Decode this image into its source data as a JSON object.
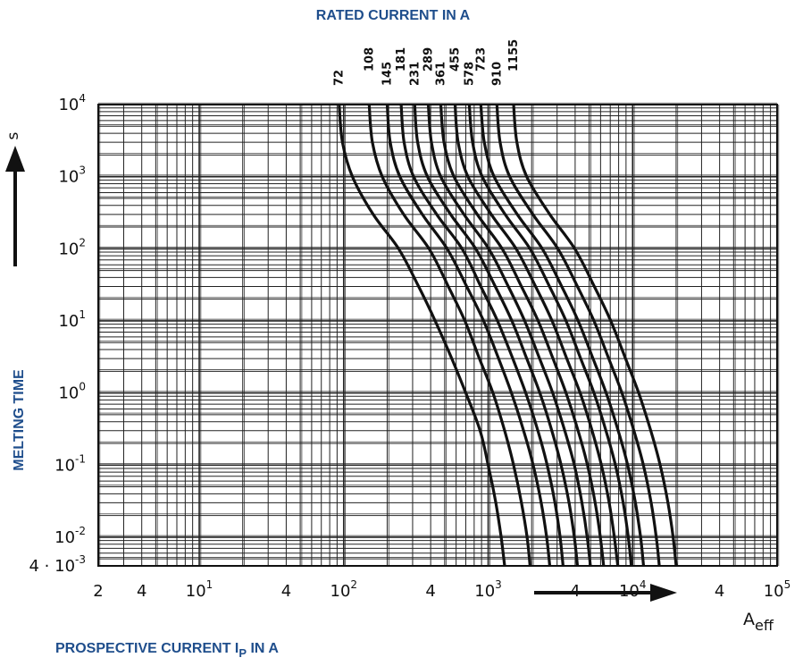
{
  "colors": {
    "label_blue": "#1f4e8c",
    "ink": "#111111",
    "grid": "#222222"
  },
  "chart_data": {
    "type": "line",
    "title": "RATED CURRENT IN A",
    "xlabel": "PROSPECTIVE CURRENT Ip IN A",
    "xlabel_main": "PROSPECTIVE CURRENT I",
    "xlabel_sub": "P",
    "xlabel_tail": " IN A",
    "ylabel": "MELTING TIME",
    "y_unit": "s",
    "x_unit_main": "A",
    "x_unit_sub": "eff",
    "x_scale": "log",
    "y_scale": "log",
    "xlim": [
      2,
      100000
    ],
    "ylim": [
      0.004,
      10000
    ],
    "grid": true,
    "x_ticks": [
      {
        "value": 2,
        "mantissa": "2",
        "exp": ""
      },
      {
        "value": 4,
        "mantissa": "4",
        "exp": ""
      },
      {
        "value": 10,
        "mantissa": "10",
        "exp": "1"
      },
      {
        "value": 40,
        "mantissa": "4",
        "exp": ""
      },
      {
        "value": 100,
        "mantissa": "10",
        "exp": "2"
      },
      {
        "value": 400,
        "mantissa": "4",
        "exp": ""
      },
      {
        "value": 1000,
        "mantissa": "10",
        "exp": "3"
      },
      {
        "value": 4000,
        "mantissa": "4",
        "exp": ""
      },
      {
        "value": 10000,
        "mantissa": "10",
        "exp": "4"
      },
      {
        "value": 40000,
        "mantissa": "4",
        "exp": ""
      },
      {
        "value": 100000,
        "mantissa": "10",
        "exp": "5"
      }
    ],
    "y_ticks": [
      {
        "value": 10000,
        "mantissa": "10",
        "exp": "4"
      },
      {
        "value": 1000,
        "mantissa": "10",
        "exp": "3"
      },
      {
        "value": 100,
        "mantissa": "10",
        "exp": "2"
      },
      {
        "value": 10,
        "mantissa": "10",
        "exp": "1"
      },
      {
        "value": 1,
        "mantissa": "10",
        "exp": "0"
      },
      {
        "value": 0.1,
        "mantissa": "10",
        "exp": "-1"
      },
      {
        "value": 0.01,
        "mantissa": "10",
        "exp": "-2"
      },
      {
        "value": 0.004,
        "mantissa": "4 · 10",
        "exp": "-3"
      }
    ],
    "series": [
      {
        "name": "72",
        "points": [
          [
            93,
            10000
          ],
          [
            98,
            3000
          ],
          [
            115,
            1000
          ],
          [
            160,
            300
          ],
          [
            240,
            100
          ],
          [
            330,
            30
          ],
          [
            430,
            10
          ],
          [
            560,
            3
          ],
          [
            700,
            1
          ],
          [
            880,
            0.3
          ],
          [
            1000,
            0.1
          ],
          [
            1130,
            0.03
          ],
          [
            1230,
            0.01
          ],
          [
            1300,
            0.004
          ]
        ]
      },
      {
        "name": "108",
        "points": [
          [
            150,
            10000
          ],
          [
            158,
            3000
          ],
          [
            185,
            1000
          ],
          [
            260,
            300
          ],
          [
            390,
            100
          ],
          [
            530,
            30
          ],
          [
            690,
            10
          ],
          [
            870,
            3
          ],
          [
            1080,
            1
          ],
          [
            1300,
            0.3
          ],
          [
            1500,
            0.1
          ],
          [
            1700,
            0.03
          ],
          [
            1860,
            0.01
          ],
          [
            1950,
            0.004
          ]
        ]
      },
      {
        "name": "145",
        "points": [
          [
            200,
            10000
          ],
          [
            210,
            3000
          ],
          [
            245,
            1000
          ],
          [
            350,
            300
          ],
          [
            520,
            100
          ],
          [
            710,
            30
          ],
          [
            930,
            10
          ],
          [
            1180,
            3
          ],
          [
            1450,
            1
          ],
          [
            1760,
            0.3
          ],
          [
            2050,
            0.1
          ],
          [
            2330,
            0.03
          ],
          [
            2540,
            0.01
          ],
          [
            2670,
            0.004
          ]
        ]
      },
      {
        "name": "181",
        "points": [
          [
            250,
            10000
          ],
          [
            262,
            3000
          ],
          [
            305,
            1000
          ],
          [
            440,
            300
          ],
          [
            660,
            100
          ],
          [
            890,
            30
          ],
          [
            1160,
            10
          ],
          [
            1480,
            3
          ],
          [
            1820,
            1
          ],
          [
            2210,
            0.3
          ],
          [
            2560,
            0.1
          ],
          [
            2900,
            0.03
          ],
          [
            3150,
            0.01
          ],
          [
            3300,
            0.004
          ]
        ]
      },
      {
        "name": "231",
        "points": [
          [
            310,
            10000
          ],
          [
            325,
            3000
          ],
          [
            380,
            1000
          ],
          [
            550,
            300
          ],
          [
            820,
            100
          ],
          [
            1120,
            30
          ],
          [
            1460,
            10
          ],
          [
            1850,
            3
          ],
          [
            2280,
            1
          ],
          [
            2760,
            0.3
          ],
          [
            3200,
            0.1
          ],
          [
            3630,
            0.03
          ],
          [
            3950,
            0.01
          ],
          [
            4150,
            0.004
          ]
        ]
      },
      {
        "name": "289",
        "points": [
          [
            385,
            10000
          ],
          [
            405,
            3000
          ],
          [
            470,
            1000
          ],
          [
            680,
            300
          ],
          [
            1010,
            100
          ],
          [
            1380,
            30
          ],
          [
            1790,
            10
          ],
          [
            2270,
            3
          ],
          [
            2800,
            1
          ],
          [
            3390,
            0.3
          ],
          [
            3950,
            0.1
          ],
          [
            4460,
            0.03
          ],
          [
            4850,
            0.01
          ],
          [
            5100,
            0.004
          ]
        ]
      },
      {
        "name": "361",
        "points": [
          [
            470,
            10000
          ],
          [
            495,
            3000
          ],
          [
            580,
            1000
          ],
          [
            840,
            300
          ],
          [
            1250,
            100
          ],
          [
            1700,
            30
          ],
          [
            2220,
            10
          ],
          [
            2810,
            3
          ],
          [
            3460,
            1
          ],
          [
            4190,
            0.3
          ],
          [
            4870,
            0.1
          ],
          [
            5500,
            0.03
          ],
          [
            5980,
            0.01
          ],
          [
            6300,
            0.004
          ]
        ]
      },
      {
        "name": "455",
        "points": [
          [
            590,
            10000
          ],
          [
            620,
            3000
          ],
          [
            725,
            1000
          ],
          [
            1050,
            300
          ],
          [
            1560,
            100
          ],
          [
            2130,
            30
          ],
          [
            2770,
            10
          ],
          [
            3500,
            3
          ],
          [
            4330,
            1
          ],
          [
            5240,
            0.3
          ],
          [
            6080,
            0.1
          ],
          [
            6880,
            0.03
          ],
          [
            7470,
            0.01
          ],
          [
            7900,
            0.004
          ]
        ]
      },
      {
        "name": "578",
        "points": [
          [
            740,
            10000
          ],
          [
            780,
            3000
          ],
          [
            910,
            1000
          ],
          [
            1310,
            300
          ],
          [
            1950,
            100
          ],
          [
            2660,
            30
          ],
          [
            3460,
            10
          ],
          [
            4370,
            3
          ],
          [
            5400,
            1
          ],
          [
            6540,
            0.3
          ],
          [
            7600,
            0.1
          ],
          [
            8600,
            0.03
          ],
          [
            9330,
            0.01
          ],
          [
            9800,
            0.004
          ]
        ]
      },
      {
        "name": "723",
        "points": [
          [
            890,
            10000
          ],
          [
            940,
            3000
          ],
          [
            1100,
            1000
          ],
          [
            1590,
            300
          ],
          [
            2370,
            100
          ],
          [
            3230,
            30
          ],
          [
            4200,
            10
          ],
          [
            5320,
            3
          ],
          [
            6560,
            1
          ],
          [
            7950,
            0.3
          ],
          [
            9240,
            0.1
          ],
          [
            10450,
            0.03
          ],
          [
            11350,
            0.01
          ],
          [
            11900,
            0.004
          ]
        ]
      },
      {
        "name": "910",
        "points": [
          [
            1150,
            10000
          ],
          [
            1210,
            3000
          ],
          [
            1410,
            1000
          ],
          [
            2040,
            300
          ],
          [
            3040,
            100
          ],
          [
            4150,
            30
          ],
          [
            5400,
            10
          ],
          [
            6830,
            3
          ],
          [
            8430,
            1
          ],
          [
            10210,
            0.3
          ],
          [
            11870,
            0.1
          ],
          [
            13430,
            0.03
          ],
          [
            14580,
            0.01
          ],
          [
            15300,
            0.004
          ]
        ]
      },
      {
        "name": "1155",
        "points": [
          [
            1500,
            10000
          ],
          [
            1580,
            3000
          ],
          [
            1850,
            1000
          ],
          [
            2670,
            300
          ],
          [
            3980,
            100
          ],
          [
            5430,
            30
          ],
          [
            7060,
            10
          ],
          [
            8930,
            3
          ],
          [
            11020,
            1
          ],
          [
            13350,
            0.3
          ],
          [
            15520,
            0.1
          ],
          [
            17560,
            0.03
          ],
          [
            19070,
            0.01
          ],
          [
            20000,
            0.004
          ]
        ]
      }
    ]
  }
}
